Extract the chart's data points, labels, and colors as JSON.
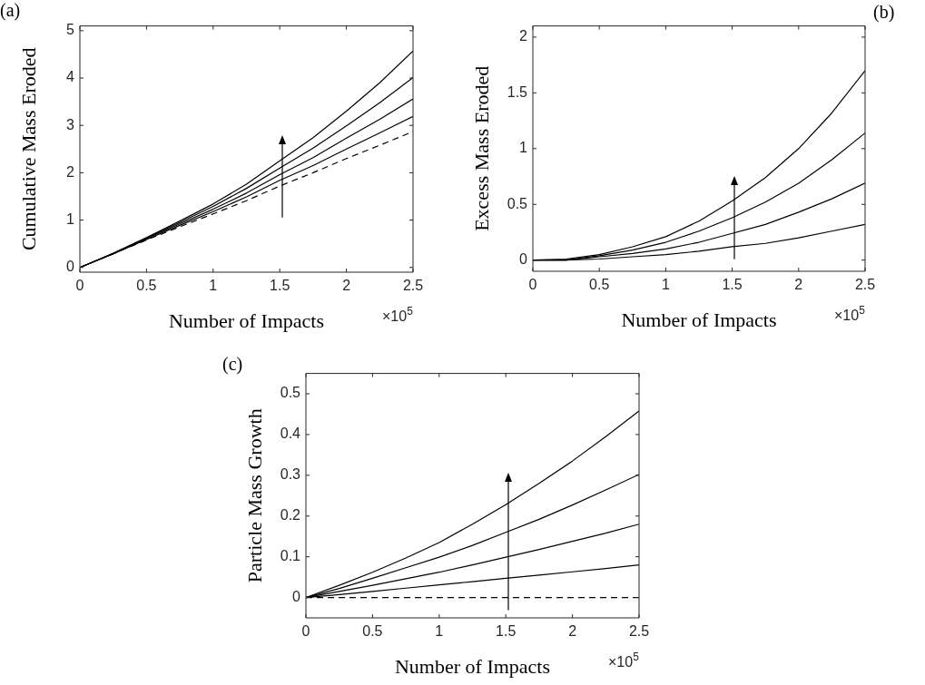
{
  "chart_data": [
    {
      "type": "line",
      "title": "(a)",
      "xlabel": "Number of Impacts",
      "ylabel": "Cumulative Mass Eroded",
      "annotations": [
        "×10$^{5}$"
      ],
      "x": [
        0,
        0.25,
        0.5,
        0.75,
        1,
        1.25,
        1.5,
        1.75,
        2,
        2.25,
        2.5
      ],
      "xlim": [
        0,
        2.5
      ],
      "xticks": [
        0,
        0.5,
        1,
        1.5,
        2,
        2.5
      ],
      "ylim": [
        -0.1,
        5.1
      ],
      "yticks": [
        0,
        1,
        2,
        3,
        4,
        5
      ],
      "series": [
        {
          "color": "#000000",
          "line_style": "dashed",
          "values": [
            0,
            0.29,
            0.58,
            0.86,
            1.13,
            1.41,
            1.72,
            2.0,
            2.3,
            2.58,
            2.87
          ]
        },
        {
          "color": "#000000",
          "values": [
            0,
            0.29,
            0.59,
            0.89,
            1.18,
            1.49,
            1.84,
            2.15,
            2.5,
            2.84,
            3.19
          ]
        },
        {
          "color": "#000000",
          "values": [
            0,
            0.29,
            0.61,
            0.92,
            1.23,
            1.57,
            1.96,
            2.32,
            2.73,
            3.13,
            3.56
          ]
        },
        {
          "color": "#000000",
          "values": [
            0,
            0.29,
            0.62,
            0.95,
            1.29,
            1.67,
            2.1,
            2.52,
            2.99,
            3.48,
            4.01
          ]
        },
        {
          "color": "#000000",
          "values": [
            0,
            0.3,
            0.63,
            0.98,
            1.34,
            1.76,
            2.25,
            2.74,
            3.3,
            3.9,
            4.57
          ]
        }
      ]
    },
    {
      "type": "line",
      "title": "(b)",
      "xlabel": "Number of Impacts",
      "ylabel": "Excess Mass Eroded",
      "annotations": [
        "×10$^{5}$"
      ],
      "x": [
        0,
        0.25,
        0.5,
        0.75,
        1,
        1.25,
        1.5,
        1.75,
        2,
        2.25,
        2.5
      ],
      "xlim": [
        0,
        2.5
      ],
      "xticks": [
        0,
        0.5,
        1,
        1.5,
        2,
        2.5
      ],
      "ylim": [
        -0.1,
        2.1
      ],
      "yticks": [
        0,
        0.5,
        1,
        1.5,
        2
      ],
      "series": [
        {
          "color": "#000000",
          "values": [
            0,
            0,
            0.01,
            0.03,
            0.05,
            0.08,
            0.12,
            0.15,
            0.2,
            0.26,
            0.32
          ]
        },
        {
          "color": "#000000",
          "values": [
            0,
            0,
            0.03,
            0.06,
            0.1,
            0.16,
            0.24,
            0.32,
            0.43,
            0.55,
            0.69
          ]
        },
        {
          "color": "#000000",
          "values": [
            0,
            0,
            0.04,
            0.09,
            0.16,
            0.26,
            0.38,
            0.52,
            0.69,
            0.9,
            1.14
          ]
        },
        {
          "color": "#000000",
          "values": [
            0,
            0.01,
            0.05,
            0.12,
            0.21,
            0.35,
            0.53,
            0.74,
            1.0,
            1.32,
            1.7
          ]
        }
      ]
    },
    {
      "type": "line",
      "title": "(c)",
      "xlabel": "Number of Impacts",
      "ylabel": "Particle Mass Growth",
      "annotations": [
        "×10$^{5}$"
      ],
      "x": [
        0,
        0.25,
        0.5,
        0.75,
        1,
        1.25,
        1.5,
        1.75,
        2,
        2.25,
        2.5
      ],
      "xlim": [
        0,
        2.5
      ],
      "xticks": [
        0,
        0.5,
        1,
        1.5,
        2,
        2.5
      ],
      "ylim": [
        -0.05,
        0.55
      ],
      "yticks": [
        0,
        0.1,
        0.2,
        0.3,
        0.4,
        0.5
      ],
      "series": [
        {
          "color": "#000000",
          "line_style": "dashed",
          "values": [
            0,
            0,
            0,
            0,
            0,
            0,
            0,
            0,
            0,
            0,
            0
          ]
        },
        {
          "color": "#000000",
          "values": [
            0,
            0.007,
            0.015,
            0.023,
            0.031,
            0.039,
            0.047,
            0.055,
            0.063,
            0.071,
            0.08
          ]
        },
        {
          "color": "#000000",
          "values": [
            0,
            0.015,
            0.03,
            0.046,
            0.062,
            0.08,
            0.099,
            0.118,
            0.138,
            0.158,
            0.18
          ]
        },
        {
          "color": "#000000",
          "values": [
            0,
            0.022,
            0.047,
            0.073,
            0.099,
            0.128,
            0.16,
            0.192,
            0.227,
            0.264,
            0.302
          ]
        },
        {
          "color": "#000000",
          "values": [
            0,
            0.03,
            0.062,
            0.097,
            0.135,
            0.18,
            0.228,
            0.28,
            0.335,
            0.395,
            0.458
          ]
        }
      ]
    }
  ]
}
